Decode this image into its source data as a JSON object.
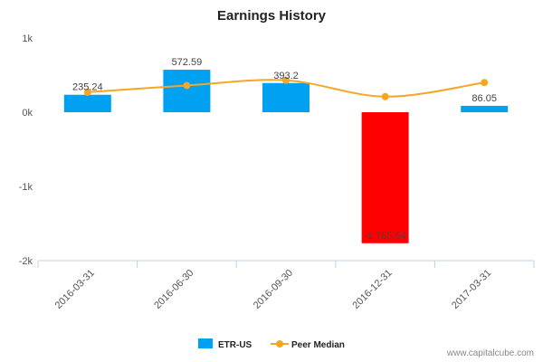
{
  "chart_data": {
    "type": "bar",
    "title": "Earnings History",
    "xlabel": "",
    "ylabel": "",
    "categories": [
      "2016-03-31",
      "2016-06-30",
      "2016-09-30",
      "2016-12-31",
      "2017-03-31"
    ],
    "ylim": [
      -2000,
      1000
    ],
    "yticks": [
      {
        "value": 1000,
        "label": "1k"
      },
      {
        "value": 0,
        "label": "0k"
      },
      {
        "value": -1000,
        "label": "-1k"
      },
      {
        "value": -2000,
        "label": "-2k"
      }
    ],
    "series": [
      {
        "name": "ETR-US",
        "type": "bar",
        "values": [
          235.24,
          572.59,
          393.2,
          -1765.54,
          86.05
        ],
        "labels": [
          "235.24",
          "572.59",
          "393.2",
          "-1,765.54",
          "86.05"
        ]
      },
      {
        "name": "Peer Median",
        "type": "line",
        "values": [
          270,
          360,
          430,
          210,
          400
        ]
      }
    ],
    "legend": "bottom-center"
  },
  "colors": {
    "bar": "#00a1f1",
    "negative_bar": "#ff0000",
    "line": "#f5a623",
    "axis": "#c0d0e0"
  },
  "footer": {
    "credit": "www.capitalcube.com"
  }
}
